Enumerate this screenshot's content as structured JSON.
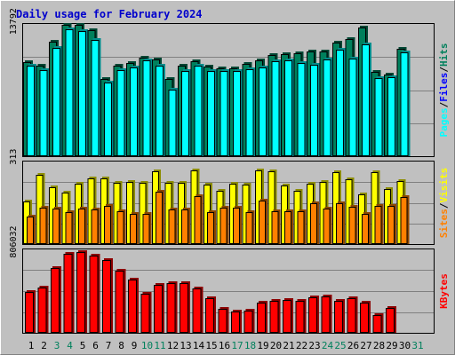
{
  "chart_data": {
    "type": "bar",
    "title": "Daily usage for February 2024",
    "categories": [
      "1",
      "2",
      "3",
      "4",
      "5",
      "6",
      "7",
      "8",
      "9",
      "10",
      "11",
      "12",
      "13",
      "14",
      "15",
      "16",
      "17",
      "18",
      "19",
      "20",
      "21",
      "22",
      "23",
      "24",
      "25",
      "26",
      "27",
      "28",
      "29",
      "30",
      "31"
    ],
    "weekend_days": [
      "3",
      "4",
      "10",
      "11",
      "17",
      "18",
      "24",
      "25",
      "31"
    ],
    "panels": [
      {
        "id": "hits-files-pages",
        "y_tick_label": "13792",
        "y_tick_value": 13792,
        "legend": [
          "Pages",
          "Files",
          "Hits"
        ],
        "colors": {
          "Hits": "#00805c",
          "Files": "#0000ff",
          "Pages": "#00ffff"
        },
        "ylim": [
          0,
          14900
        ],
        "series": [
          {
            "name": "Hits",
            "values": [
              10600,
              10200,
              12800,
              14700,
              14700,
              14100,
              8700,
              10200,
              10500,
              11100,
              10900,
              8700,
              10200,
              10700,
              10100,
              9900,
              9900,
              10400,
              10800,
              11300,
              11400,
              11500,
              11700,
              11700,
              12700,
              13100,
              14400,
              9500,
              9200,
              12000,
              0
            ]
          },
          {
            "name": "Files",
            "values": [
              10200,
              9700,
              12100,
              14200,
              14000,
              13000,
              8300,
              9700,
              10000,
              10800,
              10200,
              7500,
              9600,
              10200,
              9600,
              9600,
              9600,
              9800,
              10000,
              10700,
              10800,
              10500,
              10300,
              10900,
              11900,
              11000,
              12500,
              8800,
              8900,
              11600,
              0
            ]
          },
          {
            "name": "Pages",
            "values": [
              10200,
              9700,
              12100,
              14200,
              14000,
              13000,
              8300,
              9700,
              10000,
              10800,
              10200,
              7500,
              9600,
              10200,
              9600,
              9600,
              9600,
              9800,
              10000,
              10700,
              10800,
              10500,
              10300,
              10900,
              11900,
              11000,
              12500,
              8800,
              8900,
              11600,
              0
            ]
          }
        ]
      },
      {
        "id": "visits-sites",
        "y_tick_label": "313",
        "y_tick_value": 313,
        "legend": [
          "Sites",
          "Visits"
        ],
        "colors": {
          "Visits": "#ffff00",
          "Sites": "#ff8000"
        },
        "ylim": [
          0,
          322
        ],
        "series": [
          {
            "name": "Visits",
            "values": [
              165,
              267,
              222,
              199,
              233,
              255,
              255,
              238,
              241,
              236,
              283,
              237,
              237,
              284,
              232,
              208,
              233,
              231,
              284,
              281,
              228,
              208,
              235,
              240,
              277,
              251,
              192,
              277,
              212,
              243,
              0
            ]
          },
          {
            "name": "Sites",
            "values": [
              109,
              142,
              140,
              127,
              140,
              136,
              150,
              128,
              117,
              117,
              204,
              137,
              137,
              187,
              127,
              142,
              141,
              125,
              168,
              128,
              128,
              128,
              160,
              138,
              158,
              147,
              119,
              150,
              148,
              183,
              0
            ]
          }
        ]
      },
      {
        "id": "kbytes",
        "y_tick_label": "806032",
        "y_tick_value": 806032,
        "legend": [
          "KBytes"
        ],
        "colors": {
          "KBytes": "#ff0000"
        },
        "ylim": [
          0,
          885000
        ],
        "series": [
          {
            "name": "KBytes",
            "values": [
              430000,
              477000,
              680000,
              830000,
              850000,
              808000,
              762000,
              655000,
              564000,
              418000,
              503000,
              530000,
              524000,
              471000,
              370000,
              258000,
              233000,
              240000,
              320000,
              337000,
              348000,
              345000,
              380000,
              385000,
              337000,
              372000,
              320000,
              195000,
              267000,
              0,
              0
            ]
          }
        ]
      }
    ]
  }
}
